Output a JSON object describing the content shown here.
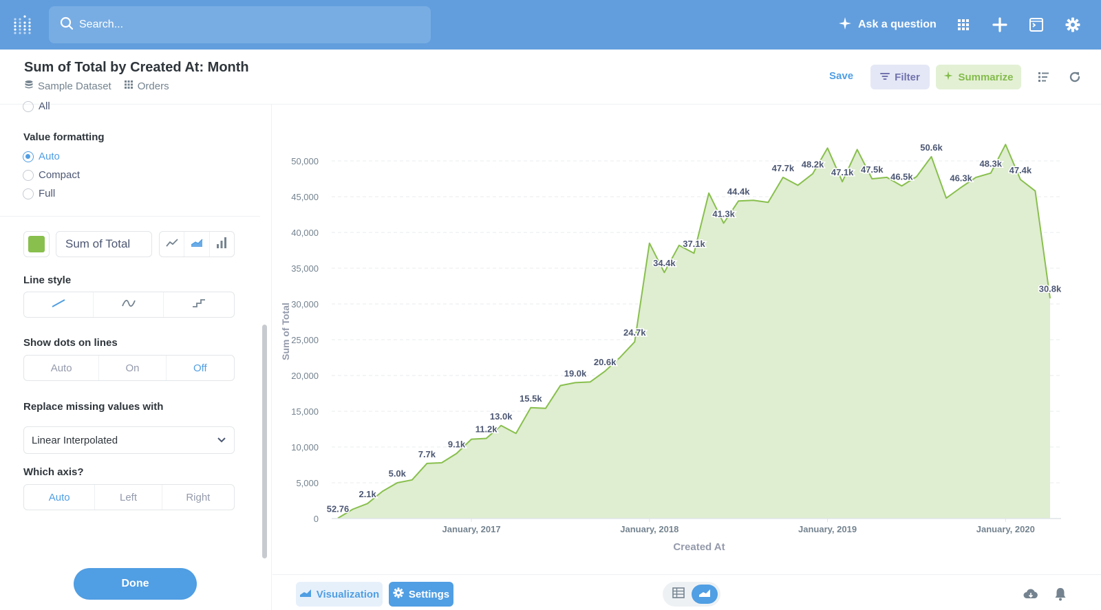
{
  "topbar": {
    "search_placeholder": "Search...",
    "ask_label": "Ask a question",
    "icons": [
      "metabase-logo-icon",
      "search-icon",
      "sparkle-icon",
      "apps-grid-icon",
      "plus-icon",
      "browse-icon",
      "gear-icon"
    ]
  },
  "header": {
    "title": "Sum of Total by Created At: Month",
    "breadcrumbs": [
      "Sample Dataset",
      "Orders"
    ],
    "save_label": "Save",
    "filter_label": "Filter",
    "summarize_label": "Summarize"
  },
  "sidebar": {
    "all_label": "All",
    "value_formatting": {
      "label": "Value formatting",
      "options": [
        "Auto",
        "Compact",
        "Full"
      ],
      "selected": "Auto"
    },
    "series": {
      "color": "#88bf4d",
      "name": "Sum of Total"
    },
    "line_style": {
      "label": "Line style"
    },
    "show_dots": {
      "label": "Show dots on lines",
      "options": [
        "Auto",
        "On",
        "Off"
      ],
      "selected": "Off"
    },
    "replace_missing": {
      "label": "Replace missing values with",
      "value": "Linear Interpolated"
    },
    "which_axis": {
      "label": "Which axis?",
      "options": [
        "Auto",
        "Left",
        "Right"
      ],
      "selected": "Auto"
    },
    "done_label": "Done"
  },
  "footer": {
    "visualization_label": "Visualization",
    "settings_label": "Settings"
  },
  "colors": {
    "brand": "#509ee3",
    "topbar": "#629edd",
    "series_line": "#88bf4d",
    "series_fill": "#dfedd0"
  },
  "chart_data": {
    "type": "area",
    "xlabel": "Created At",
    "ylabel": "Sum of Total",
    "ylim": [
      0,
      55000
    ],
    "yticks": [
      0,
      5000,
      10000,
      15000,
      20000,
      25000,
      30000,
      35000,
      40000,
      45000,
      50000
    ],
    "ytick_labels": [
      "0",
      "5,000",
      "10,000",
      "15,000",
      "20,000",
      "25,000",
      "30,000",
      "35,000",
      "40,000",
      "45,000",
      "50,000"
    ],
    "x_tick_labels": [
      {
        "month": "2017-01",
        "label": "January, 2017"
      },
      {
        "month": "2018-01",
        "label": "January, 2018"
      },
      {
        "month": "2019-01",
        "label": "January, 2019"
      },
      {
        "month": "2020-01",
        "label": "January, 2020"
      }
    ],
    "grid": true,
    "series": [
      {
        "name": "Sum of Total",
        "x": [
          "2016-04",
          "2016-05",
          "2016-06",
          "2016-07",
          "2016-08",
          "2016-09",
          "2016-10",
          "2016-11",
          "2016-12",
          "2017-01",
          "2017-02",
          "2017-03",
          "2017-04",
          "2017-05",
          "2017-06",
          "2017-07",
          "2017-08",
          "2017-09",
          "2017-10",
          "2017-11",
          "2017-12",
          "2018-01",
          "2018-02",
          "2018-03",
          "2018-04",
          "2018-05",
          "2018-06",
          "2018-07",
          "2018-08",
          "2018-09",
          "2018-10",
          "2018-11",
          "2018-12",
          "2019-01",
          "2019-02",
          "2019-03",
          "2019-04",
          "2019-05",
          "2019-06",
          "2019-07",
          "2019-08",
          "2019-09",
          "2019-10",
          "2019-11",
          "2019-12",
          "2020-01",
          "2020-02",
          "2020-03",
          "2020-04"
        ],
        "values": [
          52.76,
          1300,
          2100,
          3800,
          5000,
          5400,
          7700,
          7800,
          9100,
          11100,
          11200,
          13000,
          11900,
          15500,
          15400,
          18600,
          19000,
          19100,
          20600,
          22500,
          24700,
          38500,
          34400,
          38200,
          37100,
          45500,
          41300,
          44400,
          44500,
          44200,
          47700,
          46600,
          48200,
          51800,
          47100,
          51600,
          47500,
          47700,
          46500,
          47800,
          50600,
          44800,
          46300,
          47700,
          48300,
          52300,
          47400,
          45800,
          30800
        ],
        "labels": [
          {
            "month": "2016-04",
            "text": "52.76"
          },
          {
            "month": "2016-06",
            "text": "2.1k"
          },
          {
            "month": "2016-08",
            "text": "5.0k"
          },
          {
            "month": "2016-10",
            "text": "7.7k"
          },
          {
            "month": "2016-12",
            "text": "9.1k"
          },
          {
            "month": "2017-02",
            "text": "11.2k"
          },
          {
            "month": "2017-03",
            "text": "13.0k"
          },
          {
            "month": "2017-05",
            "text": "15.5k"
          },
          {
            "month": "2017-08",
            "text": "19.0k"
          },
          {
            "month": "2017-10",
            "text": "20.6k"
          },
          {
            "month": "2017-12",
            "text": "24.7k"
          },
          {
            "month": "2018-02",
            "text": "34.4k"
          },
          {
            "month": "2018-04",
            "text": "37.1k"
          },
          {
            "month": "2018-06",
            "text": "41.3k"
          },
          {
            "month": "2018-07",
            "text": "44.4k"
          },
          {
            "month": "2018-10",
            "text": "47.7k"
          },
          {
            "month": "2018-12",
            "text": "48.2k"
          },
          {
            "month": "2019-02",
            "text": "47.1k"
          },
          {
            "month": "2019-04",
            "text": "47.5k"
          },
          {
            "month": "2019-06",
            "text": "46.5k"
          },
          {
            "month": "2019-08",
            "text": "50.6k"
          },
          {
            "month": "2019-10",
            "text": "46.3k"
          },
          {
            "month": "2019-12",
            "text": "48.3k"
          },
          {
            "month": "2020-02",
            "text": "47.4k"
          },
          {
            "month": "2020-04",
            "text": "30.8k"
          }
        ]
      }
    ]
  }
}
